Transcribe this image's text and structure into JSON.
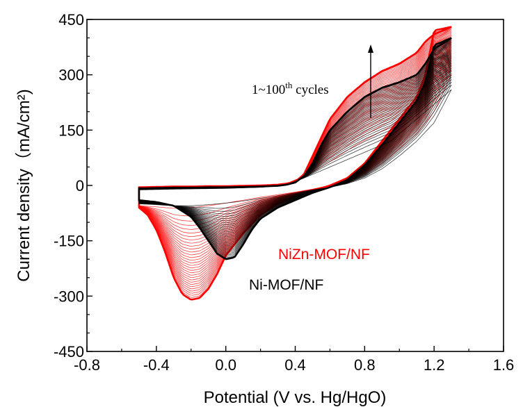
{
  "chart_data": {
    "type": "line",
    "xlabel": "Potential (V vs. Hg/HgO)",
    "ylabel": "Current density（mA/cm²)",
    "xlim": [
      -0.8,
      1.6
    ],
    "ylim": [
      -450,
      450
    ],
    "xticks": [
      -0.8,
      -0.4,
      0.0,
      0.4,
      0.8,
      1.2,
      1.6
    ],
    "yticks": [
      -450,
      -300,
      -150,
      0,
      150,
      300,
      450
    ],
    "xtick_labels": [
      "-0.8",
      "-0.4",
      "0.0",
      "0.4",
      "0.8",
      "1.2",
      "1.6"
    ],
    "ytick_labels": [
      "-450",
      "-300",
      "-150",
      "0",
      "150",
      "300",
      "450"
    ],
    "grid": false,
    "annotation": {
      "text_main": "1~100",
      "text_sup": "th",
      "text_tail": " cycles",
      "arrow": "upward"
    },
    "cycles": 100,
    "series": [
      {
        "name": "NiZn-MOF/NF",
        "color": "#ff0000",
        "first_cycle": {
          "anodic": {
            "x": [
              -0.5,
              -0.3,
              0.0,
              0.2,
              0.35,
              0.45,
              0.55,
              0.65,
              0.75,
              0.85,
              0.95,
              1.05,
              1.15,
              1.3
            ],
            "y": [
              -10,
              -8,
              -5,
              -2,
              5,
              25,
              50,
              80,
              110,
              135,
              160,
              200,
              250,
              300
            ]
          },
          "cathodic": {
            "x": [
              1.3,
              1.2,
              1.1,
              1.0,
              0.9,
              0.8,
              0.7,
              0.6,
              0.5,
              0.4,
              0.3,
              0.2,
              0.1,
              0.0,
              -0.1,
              -0.2,
              -0.3,
              -0.4,
              -0.5
            ],
            "y": [
              300,
              200,
              140,
              100,
              60,
              30,
              10,
              0,
              -10,
              -18,
              -25,
              -32,
              -40,
              -48,
              -55,
              -60,
              -62,
              -58,
              -55
            ]
          }
        },
        "last_cycle": {
          "anodic": {
            "x": [
              -0.5,
              -0.4,
              -0.3,
              -0.2,
              -0.1,
              0.0,
              0.1,
              0.2,
              0.3,
              0.35,
              0.4,
              0.45,
              0.5,
              0.55,
              0.6,
              0.7,
              0.8,
              0.9,
              1.0,
              1.1,
              1.15,
              1.2,
              1.3
            ],
            "y": [
              -5,
              -4,
              -3,
              -3,
              -2,
              -2,
              -1,
              0,
              2,
              5,
              10,
              30,
              80,
              130,
              180,
              240,
              280,
              310,
              330,
              360,
              390,
              410,
              430
            ]
          },
          "cathodic": {
            "x": [
              1.3,
              1.2,
              1.15,
              1.1,
              1.0,
              0.9,
              0.8,
              0.7,
              0.6,
              0.5,
              0.4,
              0.3,
              0.2,
              0.1,
              0.0,
              -0.05,
              -0.1,
              -0.15,
              -0.2,
              -0.25,
              -0.3,
              -0.35,
              -0.4,
              -0.45,
              -0.5
            ],
            "y": [
              430,
              420,
              300,
              240,
              180,
              120,
              60,
              20,
              0,
              -15,
              -30,
              -50,
              -80,
              -130,
              -190,
              -240,
              -280,
              -305,
              -310,
              -295,
              -250,
              -180,
              -120,
              -80,
              -60
            ]
          }
        }
      },
      {
        "name": "Ni-MOF/NF",
        "color": "#000000",
        "first_cycle": {
          "anodic": {
            "x": [
              -0.5,
              -0.3,
              0.0,
              0.2,
              0.35,
              0.45,
              0.55,
              0.65,
              0.75,
              0.85,
              0.95,
              1.05,
              1.15,
              1.3
            ],
            "y": [
              -12,
              -10,
              -8,
              -5,
              2,
              20,
              40,
              60,
              80,
              100,
              120,
              160,
              200,
              260
            ]
          },
          "cathodic": {
            "x": [
              1.3,
              1.2,
              1.1,
              1.0,
              0.9,
              0.8,
              0.7,
              0.6,
              0.5,
              0.4,
              0.3,
              0.2,
              0.1,
              0.0,
              -0.1,
              -0.2,
              -0.3,
              -0.4,
              -0.5
            ],
            "y": [
              260,
              170,
              120,
              80,
              45,
              20,
              5,
              -5,
              -12,
              -20,
              -28,
              -35,
              -42,
              -48,
              -52,
              -55,
              -55,
              -52,
              -50
            ]
          }
        },
        "last_cycle": {
          "anodic": {
            "x": [
              -0.5,
              -0.4,
              -0.3,
              -0.2,
              -0.1,
              0.0,
              0.1,
              0.2,
              0.3,
              0.35,
              0.4,
              0.45,
              0.5,
              0.55,
              0.6,
              0.7,
              0.8,
              0.9,
              1.0,
              1.1,
              1.15,
              1.2,
              1.3
            ],
            "y": [
              -8,
              -7,
              -6,
              -6,
              -5,
              -5,
              -4,
              -3,
              -1,
              2,
              8,
              25,
              60,
              110,
              150,
              200,
              240,
              265,
              280,
              300,
              330,
              370,
              400
            ]
          },
          "cathodic": {
            "x": [
              1.3,
              1.2,
              1.15,
              1.1,
              1.0,
              0.9,
              0.8,
              0.7,
              0.6,
              0.5,
              0.4,
              0.3,
              0.2,
              0.15,
              0.1,
              0.05,
              0.0,
              -0.05,
              -0.1,
              -0.15,
              -0.2,
              -0.3,
              -0.4,
              -0.5
            ],
            "y": [
              400,
              380,
              280,
              230,
              170,
              110,
              55,
              15,
              -5,
              -20,
              -40,
              -60,
              -90,
              -120,
              -160,
              -195,
              -200,
              -185,
              -150,
              -115,
              -85,
              -55,
              -45,
              -40
            ]
          }
        }
      }
    ]
  }
}
